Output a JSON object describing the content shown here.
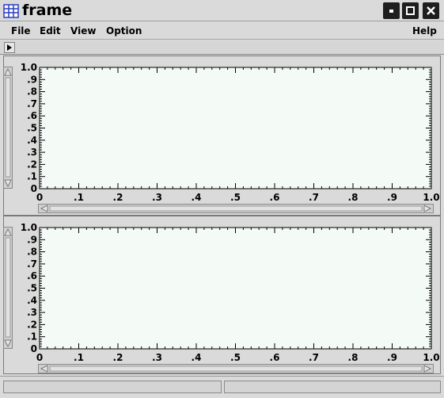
{
  "window": {
    "title": "frame",
    "app_icon": "grid-icon"
  },
  "window_buttons": [
    "minimize-icon",
    "maximize-icon",
    "close-icon"
  ],
  "menu": {
    "file": "File",
    "edit": "Edit",
    "view": "View",
    "option": "Option",
    "help": "Help"
  },
  "toolbar": {
    "toggle_icon": "play-triangle-icon"
  },
  "plots": [
    {
      "type": "line",
      "series": [],
      "xlim": [
        0,
        1.0
      ],
      "ylim": [
        0,
        1.0
      ],
      "x_tick_labels": [
        "0",
        ".1",
        ".2",
        ".3",
        ".4",
        ".5",
        ".6",
        ".7",
        ".8",
        ".9",
        "1.0"
      ],
      "y_tick_labels": [
        "0",
        ".1",
        ".2",
        ".3",
        ".4",
        ".5",
        ".6",
        ".7",
        ".8",
        ".9",
        "1.0"
      ],
      "grid": false
    },
    {
      "type": "line",
      "series": [],
      "xlim": [
        0,
        1.0
      ],
      "ylim": [
        0,
        1.0
      ],
      "x_tick_labels": [
        "0",
        ".1",
        ".2",
        ".3",
        ".4",
        ".5",
        ".6",
        ".7",
        ".8",
        ".9",
        "1.0"
      ],
      "y_tick_labels": [
        "0",
        ".1",
        ".2",
        ".3",
        ".4",
        ".5",
        ".6",
        ".7",
        ".8",
        ".9",
        "1.0"
      ],
      "grid": false
    }
  ],
  "statusbar": {
    "left": "",
    "right": ""
  },
  "colors": {
    "plot_background": "#f4faf6",
    "chrome": "#dadada"
  }
}
